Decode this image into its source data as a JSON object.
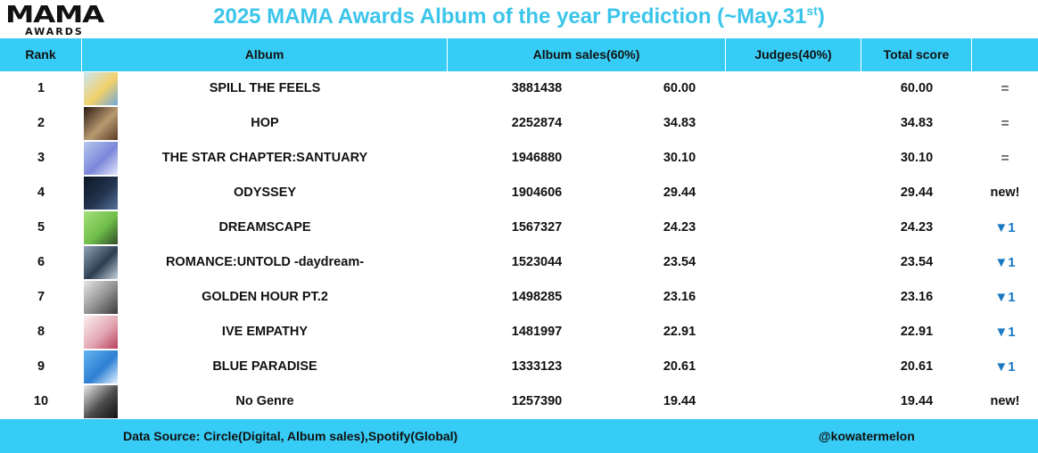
{
  "logo": {
    "main": "MAMA",
    "sub": "AWARDS"
  },
  "title": {
    "text": "2025 MAMA Awards Album of the year Prediction (~May.31",
    "sup": "st",
    "close": ")"
  },
  "colors": {
    "accent": "#37ccf5",
    "title": "#3cc5ea",
    "down": "#1a78c2"
  },
  "chart_data": {
    "type": "table",
    "columns": [
      "Rank",
      "Album",
      "Album sales(60%)",
      "Judges(40%)",
      "Total score",
      ""
    ],
    "rows": [
      {
        "rank": "1",
        "album": "SPILL THE FEELS",
        "sales": "3881438",
        "sales_score": "60.00",
        "judges": "",
        "total": "60.00",
        "change": "=",
        "change_type": "same",
        "cover": [
          "#c8e6f5",
          "#f2d06a",
          "#6fa9d8"
        ]
      },
      {
        "rank": "2",
        "album": "HOP",
        "sales": "2252874",
        "sales_score": "34.83",
        "judges": "",
        "total": "34.83",
        "change": "=",
        "change_type": "same",
        "cover": [
          "#2a1a12",
          "#b89a70",
          "#5a3a26"
        ]
      },
      {
        "rank": "3",
        "album": "THE STAR CHAPTER:SANTUARY",
        "sales": "1946880",
        "sales_score": "30.10",
        "judges": "",
        "total": "30.10",
        "change": "=",
        "change_type": "same",
        "cover": [
          "#b7c7ee",
          "#7b86d9",
          "#e6e9fb"
        ]
      },
      {
        "rank": "4",
        "album": "ODYSSEY",
        "sales": "1904606",
        "sales_score": "29.44",
        "judges": "",
        "total": "29.44",
        "change": "new!",
        "change_type": "new",
        "cover": [
          "#0c1526",
          "#23344e",
          "#56729a"
        ]
      },
      {
        "rank": "5",
        "album": "DREAMSCAPE",
        "sales": "1567327",
        "sales_score": "24.23",
        "judges": "",
        "total": "24.23",
        "change": "1",
        "change_type": "down",
        "cover": [
          "#a4e07a",
          "#6fbd4a",
          "#2f4d26"
        ]
      },
      {
        "rank": "6",
        "album": "ROMANCE:UNTOLD -daydream-",
        "sales": "1523044",
        "sales_score": "23.54",
        "judges": "",
        "total": "23.54",
        "change": "1",
        "change_type": "down",
        "cover": [
          "#8fa3b6",
          "#2d3e52",
          "#c7d3de"
        ]
      },
      {
        "rank": "7",
        "album": "GOLDEN HOUR PT.2",
        "sales": "1498285",
        "sales_score": "23.16",
        "judges": "",
        "total": "23.16",
        "change": "1",
        "change_type": "down",
        "cover": [
          "#e7e7e7",
          "#8e8e8e",
          "#3a3a3a"
        ]
      },
      {
        "rank": "8",
        "album": "IVE EMPATHY",
        "sales": "1481997",
        "sales_score": "22.91",
        "judges": "",
        "total": "22.91",
        "change": "1",
        "change_type": "down",
        "cover": [
          "#fbeff0",
          "#e3a8b5",
          "#b8415c"
        ]
      },
      {
        "rank": "9",
        "album": "BLUE PARADISE",
        "sales": "1333123",
        "sales_score": "20.61",
        "judges": "",
        "total": "20.61",
        "change": "1",
        "change_type": "down",
        "cover": [
          "#62b4ef",
          "#2e7fd3",
          "#e4f3ff"
        ]
      },
      {
        "rank": "10",
        "album": "No Genre",
        "sales": "1257390",
        "sales_score": "19.44",
        "judges": "",
        "total": "19.44",
        "change": "new!",
        "change_type": "new",
        "cover": [
          "#eaeaea",
          "#4a4a4a",
          "#111111"
        ]
      }
    ]
  },
  "footer": {
    "source": "Data Source: Circle(Digital, Album sales),Spotify(Global)",
    "handle": "@kowatermelon"
  }
}
